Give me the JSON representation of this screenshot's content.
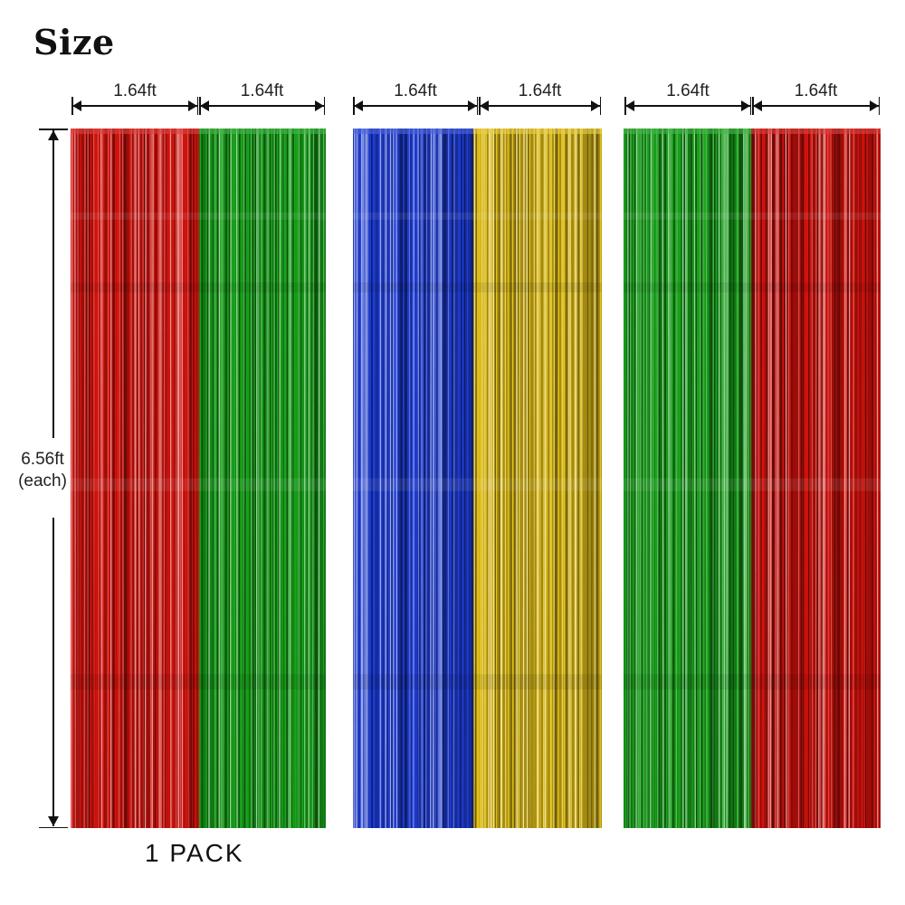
{
  "title": "Size",
  "width_label": "1.64ft",
  "height_label": {
    "line1": "6.56ft",
    "line2": "(each)"
  },
  "pack_label": "1 PACK",
  "groups": [
    {
      "curtains": [
        {
          "color": "red"
        },
        {
          "color": "green"
        }
      ]
    },
    {
      "curtains": [
        {
          "color": "blue"
        },
        {
          "color": "gold"
        }
      ]
    },
    {
      "curtains": [
        {
          "color": "green"
        },
        {
          "color": "red"
        }
      ]
    }
  ],
  "colors": {
    "red": "#d8140e",
    "green": "#1aa61c",
    "blue": "#1f3ed8",
    "gold": "#e6c41a"
  }
}
